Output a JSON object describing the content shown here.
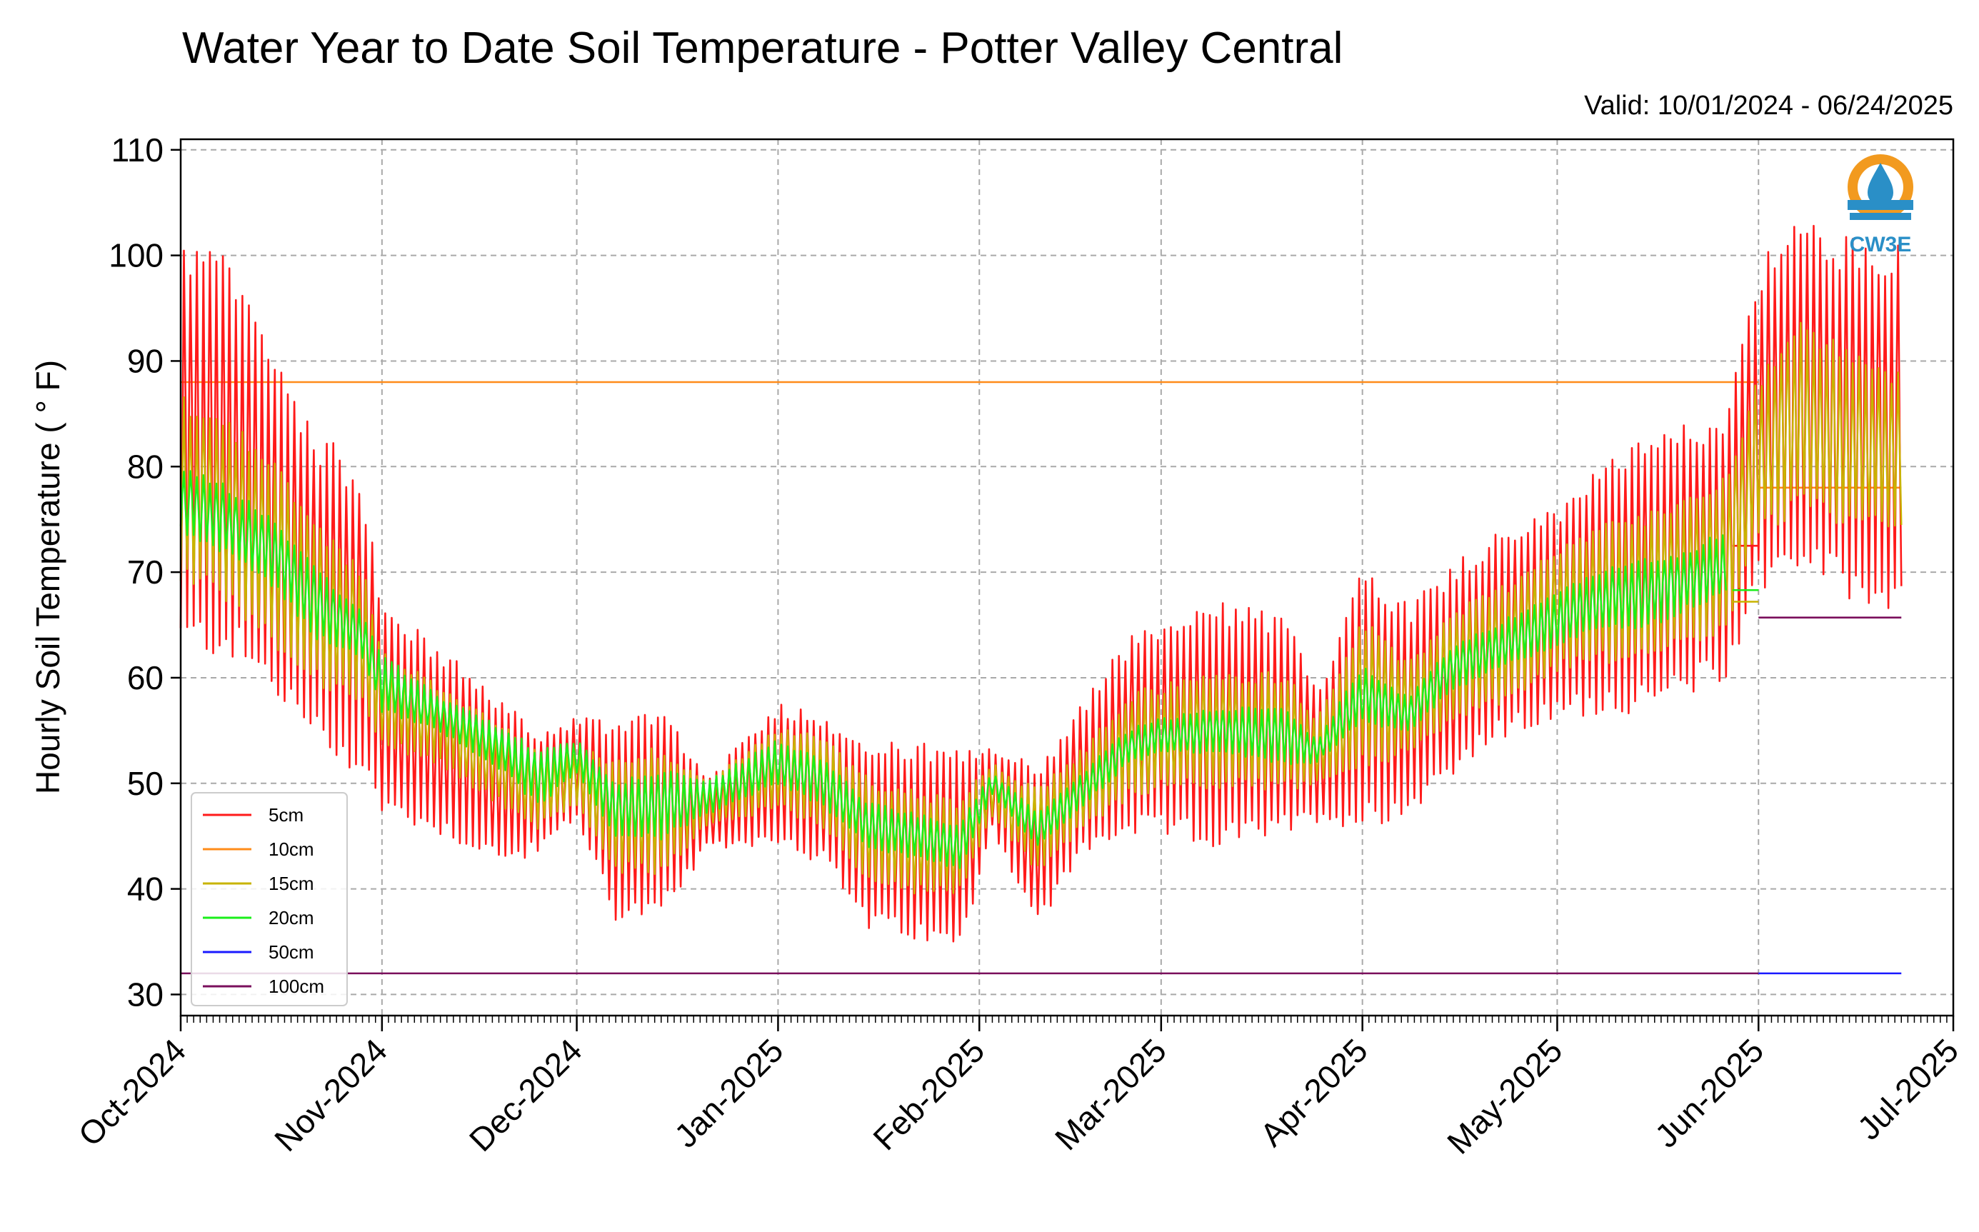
{
  "chart_data": {
    "type": "line",
    "title": "Water Year to Date Soil Temperature - Potter Valley Central",
    "subtitle": "Valid: 10/01/2024 - 06/24/2025",
    "ylabel": "Hourly Soil Temperature ( ° F)",
    "xlabel": "",
    "ylim": [
      28,
      111
    ],
    "yticks": [
      30,
      40,
      50,
      60,
      70,
      80,
      90,
      100,
      110
    ],
    "xlim": [
      "2024-10-01",
      "2025-07-01"
    ],
    "xticks": [
      {
        "date": "2024-10-01",
        "label": "Oct-2024"
      },
      {
        "date": "2024-11-01",
        "label": "Nov-2024"
      },
      {
        "date": "2024-12-01",
        "label": "Dec-2024"
      },
      {
        "date": "2025-01-01",
        "label": "Jan-2025"
      },
      {
        "date": "2025-02-01",
        "label": "Feb-2025"
      },
      {
        "date": "2025-03-01",
        "label": "Mar-2025"
      },
      {
        "date": "2025-04-01",
        "label": "Apr-2025"
      },
      {
        "date": "2025-05-01",
        "label": "May-2025"
      },
      {
        "date": "2025-06-01",
        "label": "Jun-2025"
      },
      {
        "date": "2025-07-01",
        "label": "Jul-2025"
      }
    ],
    "grid": true,
    "legend_position": "lower-left",
    "logo_text": "CW3E",
    "series": [
      {
        "name": "5cm",
        "color": "#ff1a1a",
        "daily_range": [
          [
            "2024-10-01",
            64,
            100
          ],
          [
            "2024-10-08",
            64,
            98
          ],
          [
            "2024-10-15",
            60,
            90
          ],
          [
            "2024-10-22",
            55,
            82
          ],
          [
            "2024-10-29",
            52,
            78
          ],
          [
            "2024-11-01",
            48,
            66
          ],
          [
            "2024-11-10",
            46,
            62
          ],
          [
            "2024-11-20",
            43,
            57
          ],
          [
            "2024-11-25",
            44,
            54
          ],
          [
            "2024-12-01",
            47,
            56
          ],
          [
            "2024-12-07",
            38,
            55
          ],
          [
            "2024-12-14",
            38,
            57
          ],
          [
            "2024-12-21",
            44,
            50
          ],
          [
            "2025-01-01",
            45,
            57
          ],
          [
            "2025-01-08",
            43,
            56
          ],
          [
            "2025-01-15",
            37,
            53
          ],
          [
            "2025-01-22",
            36,
            53
          ],
          [
            "2025-01-29",
            35,
            52
          ],
          [
            "2025-02-03",
            46,
            53
          ],
          [
            "2025-02-10",
            37,
            51
          ],
          [
            "2025-02-17",
            44,
            57
          ],
          [
            "2025-02-24",
            46,
            63
          ],
          [
            "2025-03-01",
            46,
            64
          ],
          [
            "2025-03-10",
            45,
            66
          ],
          [
            "2025-03-20",
            46,
            65
          ],
          [
            "2025-03-25",
            47,
            58
          ],
          [
            "2025-04-01",
            47,
            70
          ],
          [
            "2025-04-08",
            48,
            66
          ],
          [
            "2025-04-15",
            52,
            70
          ],
          [
            "2025-04-22",
            55,
            73
          ],
          [
            "2025-05-01",
            57,
            75
          ],
          [
            "2025-05-08",
            58,
            80
          ],
          [
            "2025-05-15",
            58,
            81
          ],
          [
            "2025-05-22",
            60,
            83
          ],
          [
            "2025-05-27",
            61,
            84
          ],
          [
            "2025-06-01",
            70,
            98
          ],
          [
            "2025-06-08",
            72,
            102
          ],
          [
            "2025-06-15",
            69,
            100
          ],
          [
            "2025-06-23",
            68,
            100
          ]
        ],
        "gap_after": {
          "from": "2025-05-28",
          "to": "2025-06-01",
          "value": 72.5
        },
        "flat_from": "2025-06-01",
        "flat_value": null
      },
      {
        "name": "10cm",
        "color": "#ff8c1a",
        "constant": 88,
        "from": "2024-10-01",
        "to": "2025-06-01",
        "after": {
          "from": "2025-06-01",
          "to": "2025-06-23",
          "value": 78
        }
      },
      {
        "name": "15cm",
        "color": "#c8b400",
        "daily_range": [
          [
            "2024-10-01",
            70,
            86
          ],
          [
            "2024-10-08",
            68,
            84
          ],
          [
            "2024-10-15",
            64,
            80
          ],
          [
            "2024-10-22",
            60,
            74
          ],
          [
            "2024-10-29",
            58,
            70
          ],
          [
            "2024-11-01",
            54,
            62
          ],
          [
            "2024-11-10",
            52,
            59
          ],
          [
            "2024-11-20",
            48,
            55
          ],
          [
            "2024-11-25",
            46,
            53
          ],
          [
            "2024-12-01",
            48,
            53
          ],
          [
            "2024-12-07",
            42,
            52
          ],
          [
            "2024-12-14",
            42,
            53
          ],
          [
            "2024-12-21",
            46,
            50
          ],
          [
            "2025-01-01",
            48,
            55
          ],
          [
            "2025-01-08",
            46,
            54
          ],
          [
            "2025-01-15",
            41,
            50
          ],
          [
            "2025-01-22",
            40,
            49
          ],
          [
            "2025-01-29",
            40,
            48
          ],
          [
            "2025-02-03",
            47,
            52
          ],
          [
            "2025-02-10",
            42,
            49
          ],
          [
            "2025-02-17",
            46,
            53
          ],
          [
            "2025-02-24",
            49,
            58
          ],
          [
            "2025-03-01",
            50,
            59
          ],
          [
            "2025-03-10",
            50,
            60
          ],
          [
            "2025-03-20",
            50,
            60
          ],
          [
            "2025-03-25",
            50,
            56
          ],
          [
            "2025-04-01",
            52,
            65
          ],
          [
            "2025-04-08",
            53,
            61
          ],
          [
            "2025-04-15",
            56,
            66
          ],
          [
            "2025-04-22",
            58,
            68
          ],
          [
            "2025-05-01",
            61,
            72
          ],
          [
            "2025-05-08",
            62,
            74
          ],
          [
            "2025-05-15",
            62,
            75
          ],
          [
            "2025-05-22",
            64,
            77
          ],
          [
            "2025-05-27",
            65,
            79
          ],
          [
            "2025-06-01",
            74,
            88
          ],
          [
            "2025-06-08",
            77,
            93
          ],
          [
            "2025-06-15",
            75,
            90
          ],
          [
            "2025-06-23",
            74,
            88
          ]
        ],
        "gap_after": {
          "from": "2025-05-28",
          "to": "2025-06-01",
          "value": 67.2
        }
      },
      {
        "name": "20cm",
        "color": "#1aef1a",
        "daily_range": [
          [
            "2024-10-01",
            74,
            80
          ],
          [
            "2024-10-08",
            72,
            78
          ],
          [
            "2024-10-15",
            69,
            75
          ],
          [
            "2024-10-22",
            64,
            70
          ],
          [
            "2024-10-29",
            62,
            66
          ],
          [
            "2024-11-01",
            57,
            62
          ],
          [
            "2024-11-10",
            55,
            58
          ],
          [
            "2024-11-20",
            51,
            55
          ],
          [
            "2024-11-25",
            48,
            53
          ],
          [
            "2024-12-01",
            51,
            54
          ],
          [
            "2024-12-07",
            45,
            50
          ],
          [
            "2024-12-14",
            45,
            51
          ],
          [
            "2024-12-21",
            47,
            50
          ],
          [
            "2025-01-01",
            50,
            54
          ],
          [
            "2025-01-08",
            48,
            52
          ],
          [
            "2025-01-15",
            44,
            48
          ],
          [
            "2025-01-22",
            43,
            47
          ],
          [
            "2025-01-29",
            42,
            46
          ],
          [
            "2025-02-03",
            49,
            51
          ],
          [
            "2025-02-10",
            44,
            47
          ],
          [
            "2025-02-17",
            48,
            51
          ],
          [
            "2025-02-24",
            52,
            55
          ],
          [
            "2025-03-01",
            53,
            56
          ],
          [
            "2025-03-10",
            53,
            57
          ],
          [
            "2025-03-20",
            52,
            57
          ],
          [
            "2025-03-25",
            52,
            54
          ],
          [
            "2025-04-01",
            56,
            61
          ],
          [
            "2025-04-08",
            55,
            58
          ],
          [
            "2025-04-15",
            59,
            63
          ],
          [
            "2025-04-22",
            61,
            65
          ],
          [
            "2025-05-01",
            63,
            68
          ],
          [
            "2025-05-08",
            65,
            70
          ],
          [
            "2025-05-15",
            65,
            71
          ],
          [
            "2025-05-22",
            67,
            72
          ],
          [
            "2025-05-27",
            68,
            74
          ]
        ],
        "gap_after": {
          "from": "2025-05-28",
          "to": "2025-06-01",
          "value": 68.3
        }
      },
      {
        "name": "50cm",
        "color": "#1a1aff",
        "constant": 32,
        "from": "2025-06-01",
        "to": "2025-06-23"
      },
      {
        "name": "100cm",
        "color": "#7a0f5c",
        "constant": 32,
        "from": "2024-10-01",
        "to": "2025-06-01",
        "after": {
          "from": "2025-06-01",
          "to": "2025-06-23",
          "value": 65.7
        }
      }
    ]
  }
}
